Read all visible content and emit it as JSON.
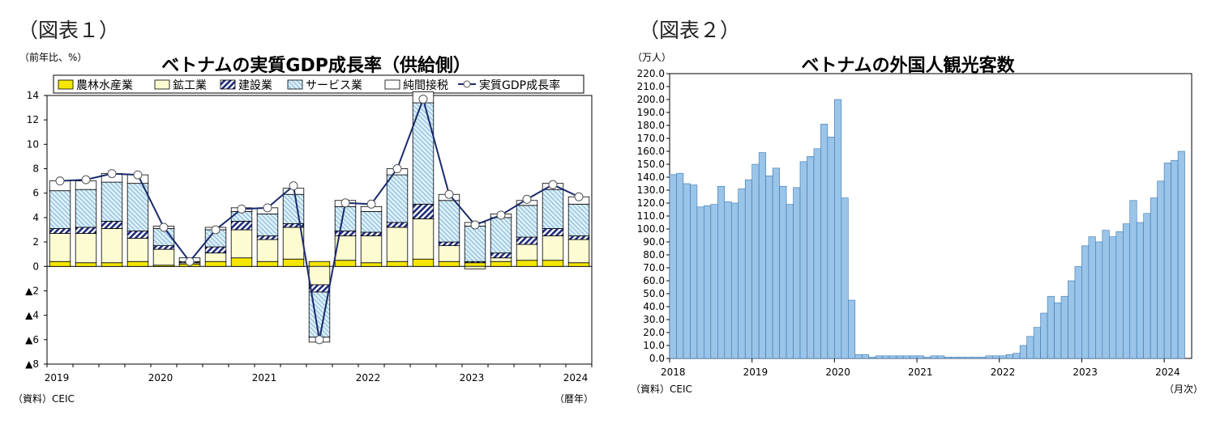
{
  "colors": {
    "agriculture": "#f5e600",
    "industry": "#fdfbd2",
    "construction": "#1f2b7a",
    "services": "#9fd0ec",
    "tax": "#ffffff",
    "gdp_line": "#1a2a6c",
    "tourist_bar": "#9ac4e8",
    "tourist_edge": "#3a76b0"
  },
  "chart1": {
    "fig_label": "（図表１）",
    "unit": "（前年比、%）",
    "source": "（資料）CEIC",
    "x_unit": "（暦年）",
    "chart_data": {
      "type": "bar",
      "title": "ベトナムの実質GDP成長率（供給側）",
      "ylim": [
        -8,
        14
      ],
      "yticks": [
        14,
        12,
        10,
        8,
        6,
        4,
        2,
        0,
        -2,
        -4,
        -6,
        -8
      ],
      "ytick_labels": [
        "14",
        "12",
        "10",
        "8",
        "6",
        "4",
        "2",
        "0",
        "▲2",
        "▲4",
        "▲6",
        "▲8"
      ],
      "xtick_labels": [
        "2019",
        "2020",
        "2021",
        "2022",
        "2023",
        "2024"
      ],
      "legend": [
        "農林水産業",
        "鉱工業",
        "建設業",
        "サービス業",
        "純間接税",
        "実質GDP成長率"
      ],
      "categories": [
        "2019Q1",
        "2019Q2",
        "2019Q3",
        "2019Q4",
        "2020Q1",
        "2020Q2",
        "2020Q3",
        "2020Q4",
        "2021Q1",
        "2021Q2",
        "2021Q3",
        "2021Q4",
        "2022Q1",
        "2022Q2",
        "2022Q3",
        "2022Q4",
        "2023Q1",
        "2023Q2",
        "2023Q3",
        "2023Q4",
        "2024Q1"
      ],
      "series": [
        {
          "name": "農林水産業",
          "values": [
            0.4,
            0.3,
            0.3,
            0.4,
            0.1,
            0.2,
            0.4,
            0.7,
            0.4,
            0.6,
            0.4,
            0.5,
            0.3,
            0.4,
            0.6,
            0.4,
            0.3,
            0.4,
            0.5,
            0.5,
            0.3
          ]
        },
        {
          "name": "鉱工業",
          "values": [
            2.3,
            2.4,
            2.8,
            1.9,
            1.3,
            0.1,
            0.7,
            2.3,
            1.8,
            2.6,
            -1.5,
            2.0,
            2.2,
            2.8,
            3.3,
            1.3,
            -0.2,
            0.3,
            1.3,
            2.0,
            1.9
          ]
        },
        {
          "name": "建設業",
          "values": [
            0.4,
            0.5,
            0.6,
            0.6,
            0.3,
            0.1,
            0.5,
            0.7,
            0.3,
            0.3,
            -0.6,
            0.4,
            0.3,
            0.4,
            1.2,
            0.3,
            0.1,
            0.4,
            0.6,
            0.6,
            0.3
          ]
        },
        {
          "name": "サービス業",
          "values": [
            3.1,
            3.1,
            3.2,
            3.9,
            1.4,
            0.0,
            1.4,
            0.8,
            1.8,
            2.4,
            -3.7,
            2.0,
            1.7,
            3.9,
            8.3,
            3.4,
            2.9,
            2.9,
            2.6,
            3.2,
            2.6
          ]
        },
        {
          "name": "純間接税",
          "values": [
            0.8,
            0.7,
            0.7,
            0.7,
            0.2,
            0.3,
            0.2,
            0.3,
            0.5,
            0.5,
            -0.4,
            0.5,
            0.4,
            0.5,
            0.9,
            0.5,
            0.3,
            0.3,
            0.4,
            0.5,
            0.6
          ]
        }
      ],
      "line": {
        "name": "実質GDP成長率",
        "values": [
          7.0,
          7.1,
          7.6,
          7.5,
          3.2,
          0.4,
          3.0,
          4.7,
          4.8,
          6.6,
          -6.0,
          5.2,
          5.1,
          8.0,
          13.7,
          5.9,
          3.4,
          4.2,
          5.5,
          6.7,
          5.7
        ]
      }
    }
  },
  "chart2": {
    "fig_label": "（図表２）",
    "unit": "（万人）",
    "source": "（資料）CEIC",
    "x_unit": "（月次）",
    "chart_data": {
      "type": "bar",
      "title": "ベトナムの外国人観光客数",
      "ylim": [
        0,
        220
      ],
      "ytick_labels": [
        "220.0",
        "210.0",
        "200.0",
        "190.0",
        "180.0",
        "170.0",
        "160.0",
        "150.0",
        "140.0",
        "130.0",
        "120.0",
        "110.0",
        "100.0",
        "90.0",
        "80.0",
        "70.0",
        "60.0",
        "50.0",
        "40.0",
        "30.0",
        "20.0",
        "10.0",
        "0.0"
      ],
      "xtick_labels": [
        "2018",
        "2019",
        "2020",
        "2021",
        "2022",
        "2023",
        "2024"
      ],
      "start": "2018-01",
      "values": [
        142,
        143,
        135,
        134,
        117,
        118,
        119,
        133,
        121,
        120,
        131,
        138,
        150,
        159,
        141,
        147,
        133,
        119,
        132,
        152,
        156,
        162,
        181,
        171,
        200,
        124,
        45,
        3,
        3,
        1,
        2,
        2,
        2,
        2,
        2,
        2,
        2,
        1,
        2,
        2,
        1,
        1,
        1,
        1,
        1,
        1,
        2,
        2,
        2,
        3,
        4,
        10,
        17,
        24,
        35,
        48,
        43,
        48,
        60,
        71,
        87,
        94,
        90,
        99,
        94,
        98,
        104,
        122,
        105,
        112,
        124,
        137,
        151,
        153,
        160
      ]
    }
  }
}
